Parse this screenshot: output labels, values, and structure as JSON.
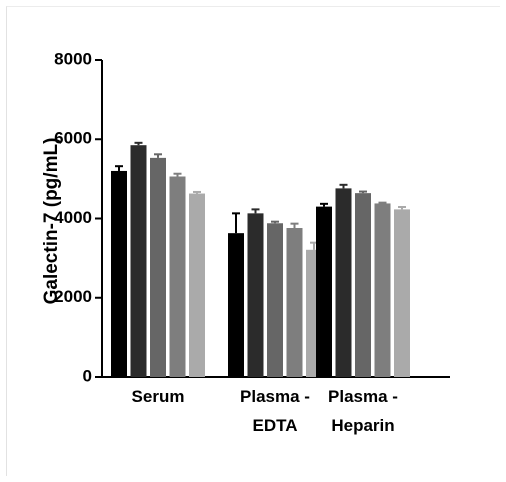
{
  "chart_data": {
    "type": "bar",
    "title": "",
    "xlabel": "",
    "ylabel": "Galectin-7 (pg/mL)",
    "ylim": [
      0,
      8000
    ],
    "yticks": [
      0,
      2000,
      4000,
      6000,
      8000
    ],
    "categories": [
      {
        "line1": "Serum",
        "line2": ""
      },
      {
        "line1": "Plasma -",
        "line2": "EDTA"
      },
      {
        "line1": "Plasma -",
        "line2": "Heparin"
      }
    ],
    "grid": false,
    "legend": "none",
    "colors": [
      "#000000",
      "#2b2b2b",
      "#666666",
      "#7e7e7e",
      "#aaaaaa"
    ],
    "series": [
      {
        "values": [
          5200,
          3630,
          4300
        ],
        "errors": [
          120,
          500,
          70
        ]
      },
      {
        "values": [
          5850,
          4130,
          4760
        ],
        "errors": [
          60,
          100,
          90
        ]
      },
      {
        "values": [
          5530,
          3880,
          4640
        ],
        "errors": [
          90,
          40,
          40
        ]
      },
      {
        "values": [
          5060,
          3760,
          4380
        ],
        "errors": [
          70,
          110,
          20
        ]
      },
      {
        "values": [
          4630,
          3210,
          4230
        ],
        "errors": [
          40,
          180,
          60
        ]
      }
    ]
  }
}
